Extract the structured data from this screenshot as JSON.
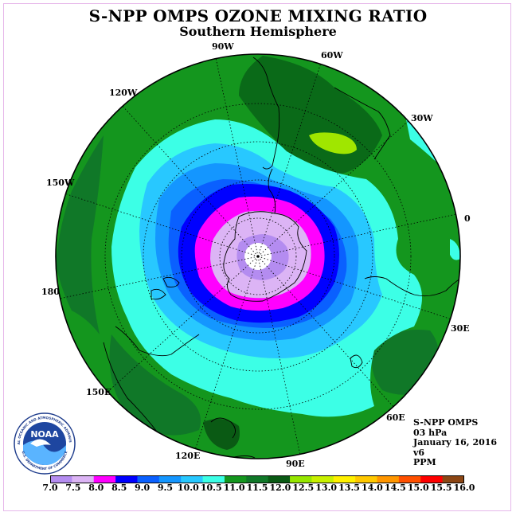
{
  "header": {
    "title": "S-NPP OMPS OZONE MIXING RATIO",
    "subtitle": "Southern Hemisphere"
  },
  "longitude_labels": [
    "90W",
    "60W",
    "30W",
    "0",
    "30E",
    "60E",
    "90E",
    "120E",
    "150E",
    "180",
    "150W",
    "120W"
  ],
  "info": {
    "instrument": "S-NPP OMPS",
    "level": "03 hPa",
    "date": "January 16, 2016",
    "version": "v6",
    "units": "PPM"
  },
  "colorbar": {
    "labels": [
      "7.0",
      "7.5",
      "8.0",
      "8.5",
      "9.0",
      "9.5",
      "10.0",
      "10.5",
      "11.0",
      "11.5",
      "12.0",
      "12.5",
      "13.0",
      "13.5",
      "14.0",
      "14.5",
      "15.0",
      "15.5",
      "16.0"
    ],
    "colors": [
      "#b48cf0",
      "#dcb4f5",
      "#ff00ff",
      "#0000ff",
      "#0a60ff",
      "#1496ff",
      "#28c8ff",
      "#3cffe6",
      "#14961e",
      "#107828",
      "#0a5a14",
      "#96e600",
      "#c8f000",
      "#fff000",
      "#ffc800",
      "#ff9600",
      "#ff5000",
      "#ff0000",
      "#8c4614"
    ]
  },
  "logo": {
    "text": "NOAA",
    "ring_text": "NATIONAL OCEANIC AND ATMOSPHERIC ADMINISTRATION",
    "ring_text_bottom": "U.S. DEPARTMENT OF COMMERCE"
  },
  "map": {
    "ocean_color": "#14961e",
    "contour_levels_ppm": [
      8.0,
      8.5,
      9.0,
      9.5,
      10.0,
      10.5,
      11.0,
      11.5,
      12.0,
      12.5
    ]
  }
}
